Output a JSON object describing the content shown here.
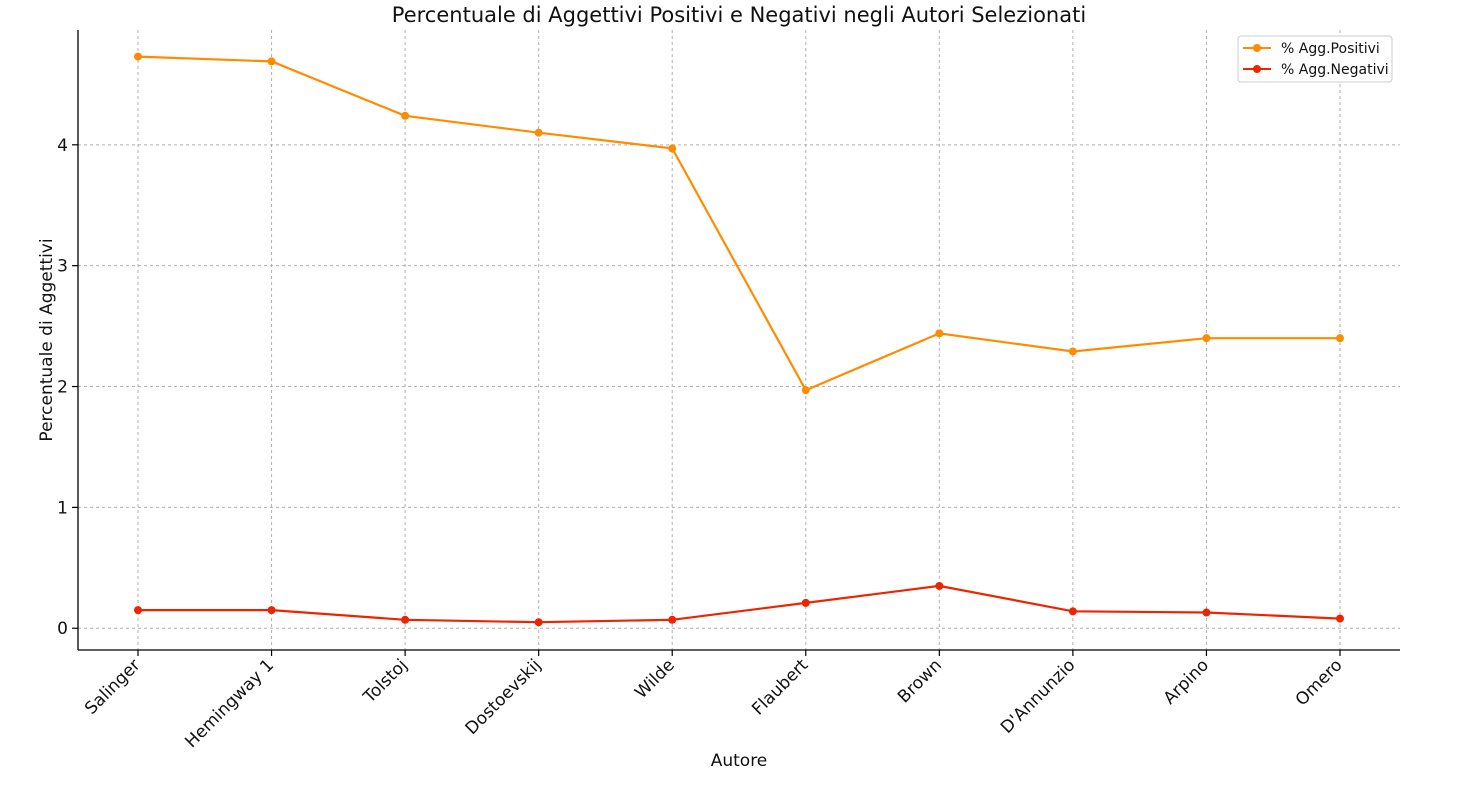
{
  "chart_data": {
    "type": "line",
    "title": "Percentuale di Aggettivi Positivi e Negativi negli Autori Selezionati",
    "xlabel": "Autore",
    "ylabel": "Percentuale di Aggettivi",
    "categories": [
      "Salinger",
      "Hemingway 1",
      "Tolstoj",
      "Dostoevskij",
      "Wilde",
      "Flaubert",
      "Brown",
      "D'Annunzio",
      "Arpino",
      "Omero"
    ],
    "y_ticks": [
      0,
      1,
      2,
      3,
      4
    ],
    "ylim": [
      -0.18,
      4.95
    ],
    "grid": true,
    "legend_position": "top-right",
    "series": [
      {
        "name": "% Agg.Positivi",
        "color": "#ff8c00",
        "values": [
          4.73,
          4.69,
          4.24,
          4.1,
          3.97,
          1.97,
          2.44,
          2.29,
          2.4,
          2.4
        ]
      },
      {
        "name": "% Agg.Negativi",
        "color": "#ee2400",
        "values": [
          0.15,
          0.15,
          0.07,
          0.05,
          0.07,
          0.21,
          0.35,
          0.14,
          0.13,
          0.08
        ]
      }
    ]
  }
}
